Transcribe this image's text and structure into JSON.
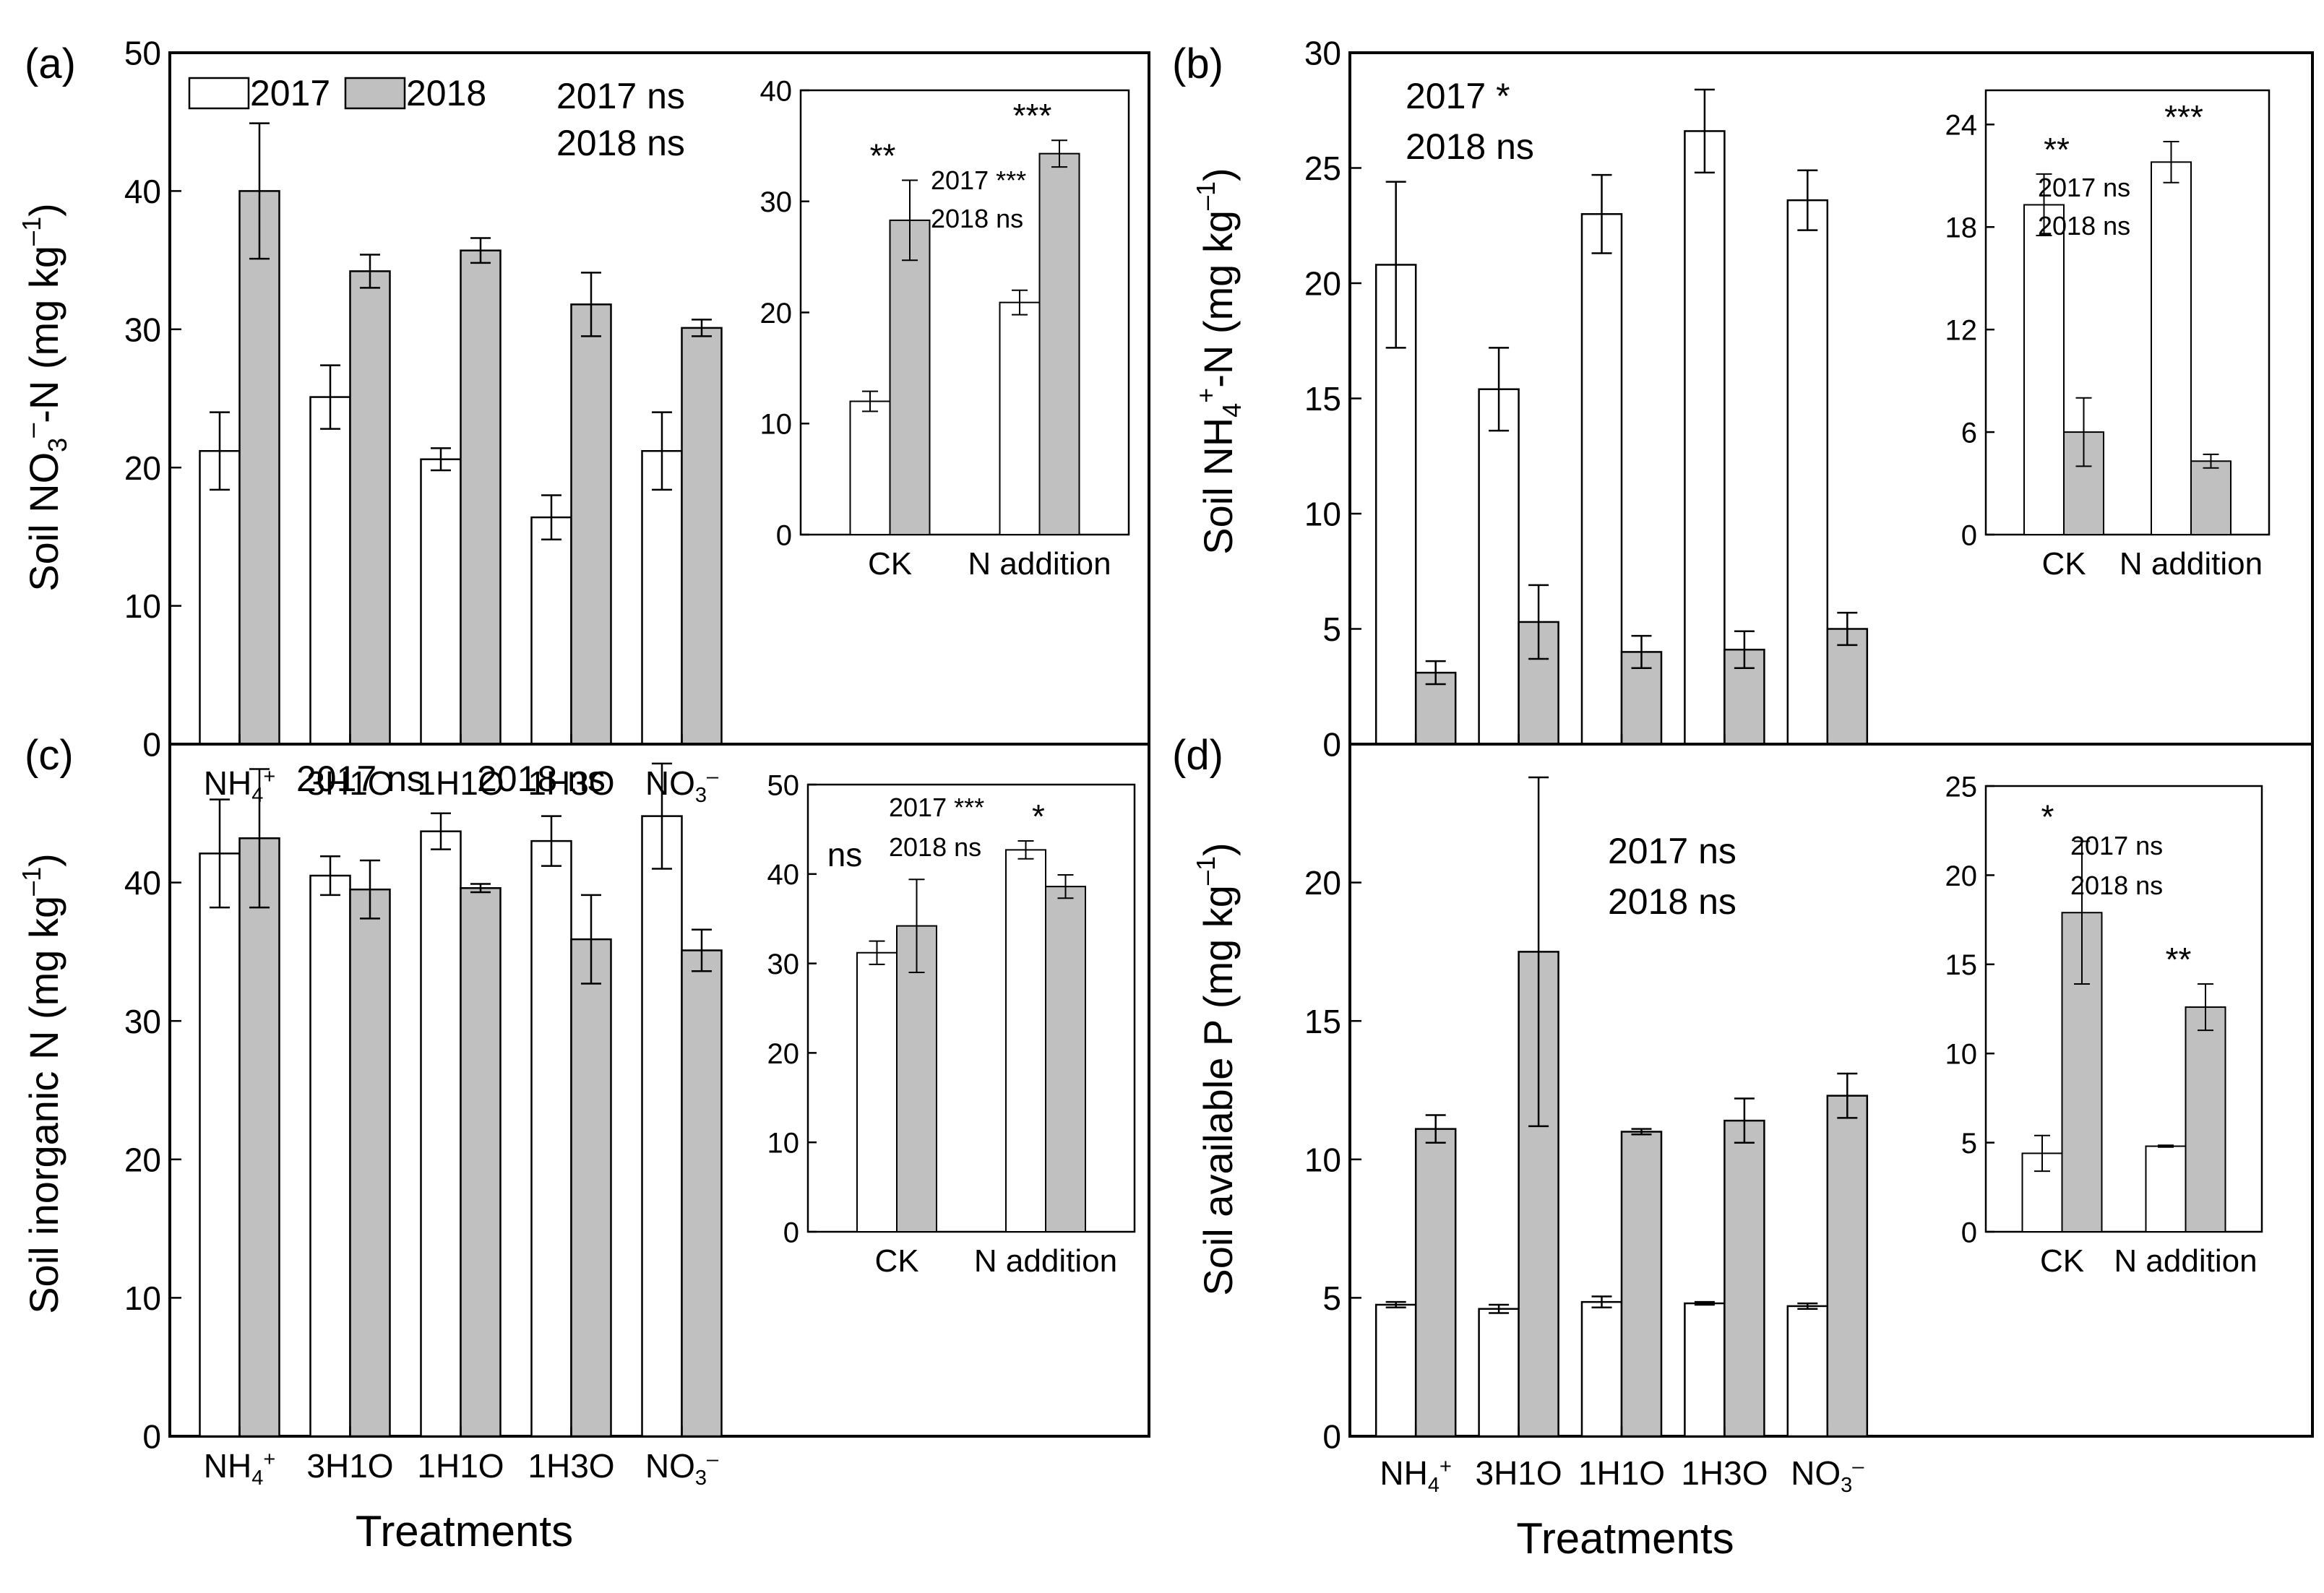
{
  "figure": {
    "legend": [
      "2017",
      "2018"
    ],
    "x_title": "Treatments",
    "categories": [
      "NH4+",
      "3H1O",
      "1H1O",
      "1H3O",
      "NO3-"
    ],
    "colors": {
      "y2017": "#ffffff",
      "y2018": "#c0c0c0",
      "axis": "#000000"
    }
  },
  "chart_data": [
    {
      "type": "bar",
      "panel": "(a)",
      "ylabel": "Soil NO3–N (mg kg–1)",
      "ylim": [
        0,
        50
      ],
      "yticks": [
        0,
        10,
        20,
        30,
        40,
        50
      ],
      "categories": [
        "NH4+",
        "3H1O",
        "1H1O",
        "1H3O",
        "NO3-"
      ],
      "series": [
        {
          "name": "2017",
          "values": [
            21.2,
            25.1,
            20.6,
            16.4,
            21.2
          ],
          "errors": [
            2.8,
            2.3,
            0.8,
            1.6,
            2.8
          ]
        },
        {
          "name": "2018",
          "values": [
            40.0,
            34.2,
            35.7,
            31.8,
            30.1
          ],
          "errors": [
            4.9,
            1.2,
            0.9,
            2.3,
            0.6
          ]
        }
      ],
      "annotations": [
        "2017 ns",
        "2018 ns"
      ],
      "inset": {
        "categories": [
          "CK",
          "N addition"
        ],
        "ylim": [
          0,
          40
        ],
        "yticks": [
          0,
          10,
          20,
          30,
          40
        ],
        "series": [
          {
            "name": "2017",
            "values": [
              12.0,
              20.9
            ],
            "errors": [
              0.9,
              1.1
            ]
          },
          {
            "name": "2018",
            "values": [
              28.3,
              34.3
            ],
            "errors": [
              3.6,
              1.2
            ]
          }
        ],
        "sig": [
          "**",
          "***"
        ],
        "notes": [
          "2017 ***",
          "2018 ns"
        ]
      }
    },
    {
      "type": "bar",
      "panel": "(b)",
      "ylabel": "Soil NH4+-N (mg kg–1)",
      "ylim": [
        0,
        30
      ],
      "yticks": [
        0,
        5,
        10,
        15,
        20,
        25,
        30
      ],
      "categories": [
        "NH4+",
        "3H1O",
        "1H1O",
        "1H3O",
        "NO3-"
      ],
      "series": [
        {
          "name": "2017",
          "values": [
            20.8,
            15.4,
            23.0,
            26.6,
            23.6
          ],
          "errors": [
            3.6,
            1.8,
            1.7,
            1.8,
            1.3
          ]
        },
        {
          "name": "2018",
          "values": [
            3.1,
            5.3,
            4.0,
            4.1,
            5.0
          ],
          "errors": [
            0.5,
            1.6,
            0.7,
            0.8,
            0.7
          ]
        }
      ],
      "annotations": [
        "2017 *",
        "2018 ns"
      ],
      "inset": {
        "categories": [
          "CK",
          "N addition"
        ],
        "ylim": [
          0,
          26
        ],
        "yticks": [
          0,
          6,
          12,
          18,
          24
        ],
        "series": [
          {
            "name": "2017",
            "values": [
              19.3,
              21.8
            ],
            "errors": [
              1.8,
              1.2
            ]
          },
          {
            "name": "2018",
            "values": [
              6.0,
              4.3
            ],
            "errors": [
              2.0,
              0.4
            ]
          }
        ],
        "sig": [
          "**",
          "***"
        ],
        "notes": [
          "2017 ns",
          "2018 ns"
        ]
      }
    },
    {
      "type": "bar",
      "panel": "(c)",
      "ylabel": "Soil inorganic N (mg kg–1)",
      "ylim": [
        0,
        50
      ],
      "yticks": [
        0,
        10,
        20,
        30,
        40
      ],
      "categories": [
        "NH4+",
        "3H1O",
        "1H1O",
        "1H3O",
        "NO3-"
      ],
      "series": [
        {
          "name": "2017",
          "values": [
            42.1,
            40.5,
            43.7,
            43.0,
            44.8
          ],
          "errors": [
            3.9,
            1.4,
            1.3,
            1.8,
            3.8
          ]
        },
        {
          "name": "2018",
          "values": [
            43.2,
            39.5,
            39.6,
            35.9,
            35.1
          ],
          "errors": [
            5.0,
            2.1,
            0.3,
            3.2,
            1.5
          ]
        }
      ],
      "annotations": [
        "2017 ns",
        "2018 ns"
      ],
      "inset": {
        "categories": [
          "CK",
          "N addition"
        ],
        "ylim": [
          0,
          50
        ],
        "yticks": [
          0,
          10,
          20,
          30,
          40,
          50
        ],
        "series": [
          {
            "name": "2017",
            "values": [
              31.2,
              42.7
            ],
            "errors": [
              1.3,
              1.0
            ]
          },
          {
            "name": "2018",
            "values": [
              34.2,
              38.6
            ],
            "errors": [
              5.2,
              1.3
            ]
          }
        ],
        "sig": [
          "ns",
          "*"
        ],
        "notes": [
          "2017 ***",
          "2018 ns"
        ]
      }
    },
    {
      "type": "bar",
      "panel": "(d)",
      "ylabel": "Soil available P (mg kg–1)",
      "ylim": [
        0,
        25
      ],
      "yticks": [
        0,
        5,
        10,
        15,
        20
      ],
      "categories": [
        "NH4+",
        "3H1O",
        "1H1O",
        "1H3O",
        "NO3-"
      ],
      "series": [
        {
          "name": "2017",
          "values": [
            4.75,
            4.6,
            4.85,
            4.8,
            4.7
          ],
          "errors": [
            0.1,
            0.15,
            0.2,
            0.05,
            0.1
          ]
        },
        {
          "name": "2018",
          "values": [
            11.1,
            17.5,
            11.0,
            11.4,
            12.3
          ],
          "errors": [
            0.5,
            6.3,
            0.1,
            0.8,
            0.8
          ]
        }
      ],
      "annotations": [
        "2017 ns",
        "2018 ns"
      ],
      "inset": {
        "categories": [
          "CK",
          "N addition"
        ],
        "ylim": [
          0,
          25
        ],
        "yticks": [
          0,
          5,
          10,
          15,
          20,
          25
        ],
        "series": [
          {
            "name": "2017",
            "values": [
              4.4,
              4.8
            ],
            "errors": [
              1.0,
              0.05
            ]
          },
          {
            "name": "2018",
            "values": [
              17.9,
              12.6
            ],
            "errors": [
              4.0,
              1.3
            ]
          }
        ],
        "sig": [
          "*",
          "**"
        ],
        "notes": [
          "2017 ns",
          "2018 ns"
        ]
      }
    }
  ]
}
